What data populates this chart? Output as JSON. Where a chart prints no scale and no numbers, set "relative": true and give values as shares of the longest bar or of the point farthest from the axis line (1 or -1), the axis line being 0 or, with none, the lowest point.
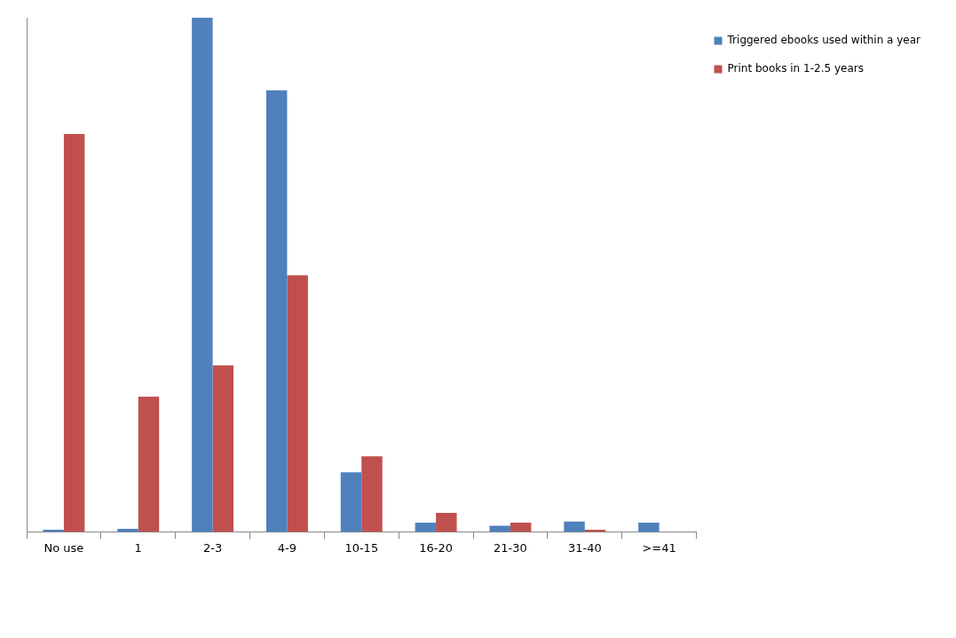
{
  "chart_data": {
    "type": "bar",
    "relative": true,
    "categories": [
      "No use",
      "1",
      "2-3",
      "4-9",
      "10-15",
      "16-20",
      "21-30",
      "31-40",
      ">=41"
    ],
    "series": [
      {
        "name": "Triggered ebooks used within a year",
        "color": "#4f81bd",
        "values": [
          0.004,
          0.006,
          1,
          0.859,
          0.116,
          0.018,
          0.012,
          0.02,
          0.018
        ]
      },
      {
        "name": "Print books in 1-2.5 years",
        "color": "#c0504d",
        "values": [
          0.774,
          0.263,
          0.324,
          0.499,
          0.147,
          0.037,
          0.018,
          0.004,
          0
        ]
      }
    ],
    "legend": "right"
  }
}
